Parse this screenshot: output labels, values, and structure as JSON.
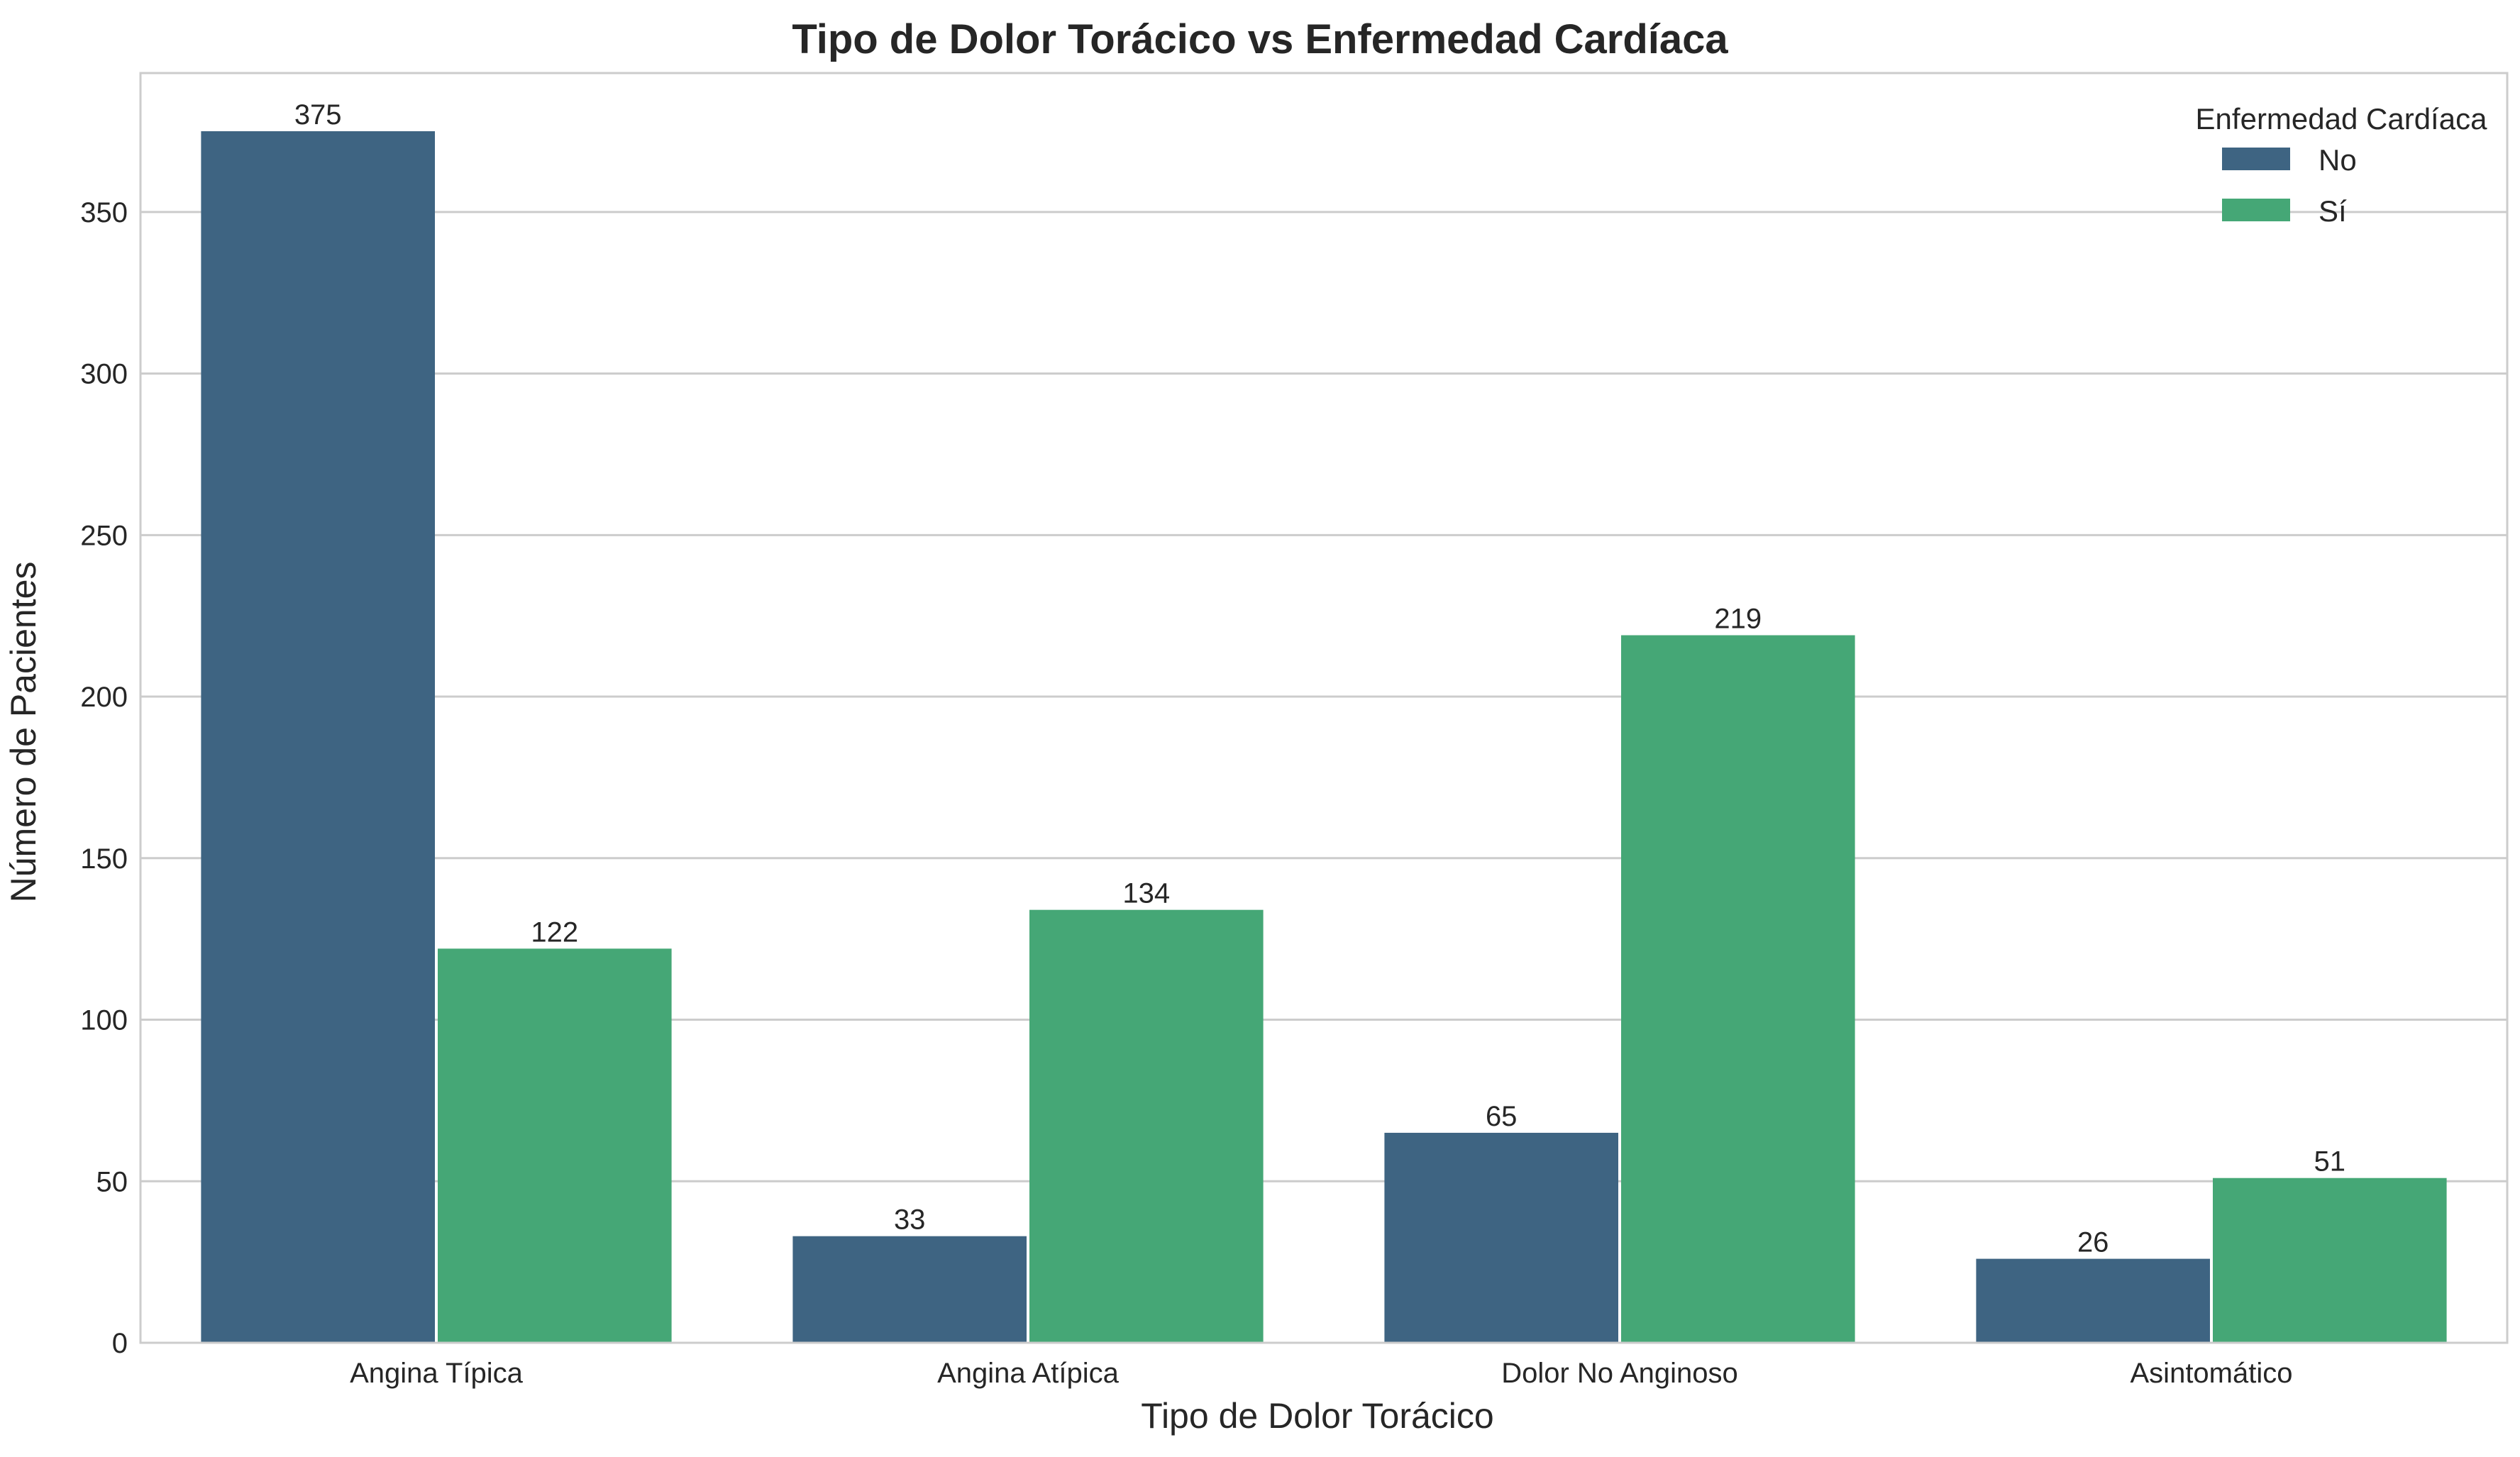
{
  "chart_data": {
    "type": "bar",
    "title": "Tipo de Dolor Torácico vs Enfermedad Cardíaca",
    "xlabel": "Tipo de Dolor Torácico",
    "ylabel": "Número de Pacientes",
    "categories": [
      "Angina Típica",
      "Angina Atípica",
      "Dolor No Anginoso",
      "Asintomático"
    ],
    "series": [
      {
        "name": "No",
        "values": [
          375,
          33,
          65,
          26
        ],
        "color": "#3e6482"
      },
      {
        "name": "Sí",
        "values": [
          122,
          134,
          219,
          51
        ],
        "color": "#45a776"
      }
    ],
    "ylim": [
      0,
      393
    ],
    "yticks": [
      0,
      50,
      100,
      150,
      200,
      250,
      300,
      350
    ],
    "grid": true,
    "legend": {
      "title": "Enfermedad Cardíaca",
      "position": "top-right"
    }
  }
}
